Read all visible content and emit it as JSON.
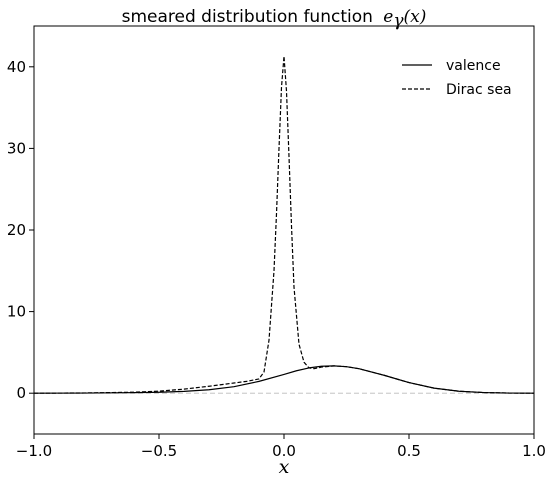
{
  "chart_data": {
    "type": "line",
    "title": "smeared distribution function",
    "title_math": "e",
    "title_math_sub": "γ",
    "title_math_arg": "(x)",
    "xlabel": "x",
    "ylabel": "",
    "xlim": [
      -1.0,
      1.0
    ],
    "ylim": [
      -5,
      45
    ],
    "x_ticks": [
      -1.0,
      -0.5,
      0.0,
      0.5,
      1.0
    ],
    "x_tick_labels": [
      "−1.0",
      "−0.5",
      "0.0",
      "0.5",
      "1.0"
    ],
    "y_ticks": [
      0,
      10,
      20,
      30,
      40
    ],
    "y_tick_labels": [
      "0",
      "10",
      "20",
      "30",
      "40"
    ],
    "grid": false,
    "zero_line": true,
    "legend_position": "top-right",
    "series": [
      {
        "name": "valence",
        "style": "solid",
        "color": "#000000",
        "x": [
          -1.0,
          -0.8,
          -0.6,
          -0.5,
          -0.4,
          -0.3,
          -0.2,
          -0.1,
          0.0,
          0.05,
          0.1,
          0.15,
          0.2,
          0.25,
          0.3,
          0.4,
          0.5,
          0.6,
          0.7,
          0.8,
          0.9,
          1.0
        ],
        "y": [
          0.0,
          0.02,
          0.07,
          0.12,
          0.22,
          0.42,
          0.8,
          1.45,
          2.3,
          2.75,
          3.1,
          3.3,
          3.35,
          3.25,
          3.0,
          2.2,
          1.3,
          0.62,
          0.24,
          0.08,
          0.02,
          0.0
        ]
      },
      {
        "name": "Dirac sea",
        "style": "dashed",
        "color": "#000000",
        "x": [
          -1.0,
          -0.8,
          -0.6,
          -0.5,
          -0.4,
          -0.3,
          -0.2,
          -0.15,
          -0.1,
          -0.08,
          -0.06,
          -0.04,
          -0.03,
          -0.02,
          -0.01,
          0.0,
          0.01,
          0.02,
          0.03,
          0.04,
          0.06,
          0.08,
          0.1,
          0.12,
          0.15,
          0.2,
          0.25,
          0.3,
          0.4,
          0.5,
          0.6,
          0.7,
          0.8,
          0.9,
          1.0
        ],
        "y": [
          0.0,
          0.03,
          0.12,
          0.25,
          0.5,
          0.85,
          1.25,
          1.45,
          1.75,
          2.6,
          6.5,
          15.0,
          22.0,
          30.0,
          37.5,
          41.3,
          37.0,
          29.0,
          20.5,
          13.0,
          6.0,
          3.8,
          3.1,
          3.0,
          3.2,
          3.35,
          3.25,
          3.0,
          2.2,
          1.3,
          0.62,
          0.24,
          0.08,
          0.02,
          0.0
        ]
      }
    ]
  }
}
